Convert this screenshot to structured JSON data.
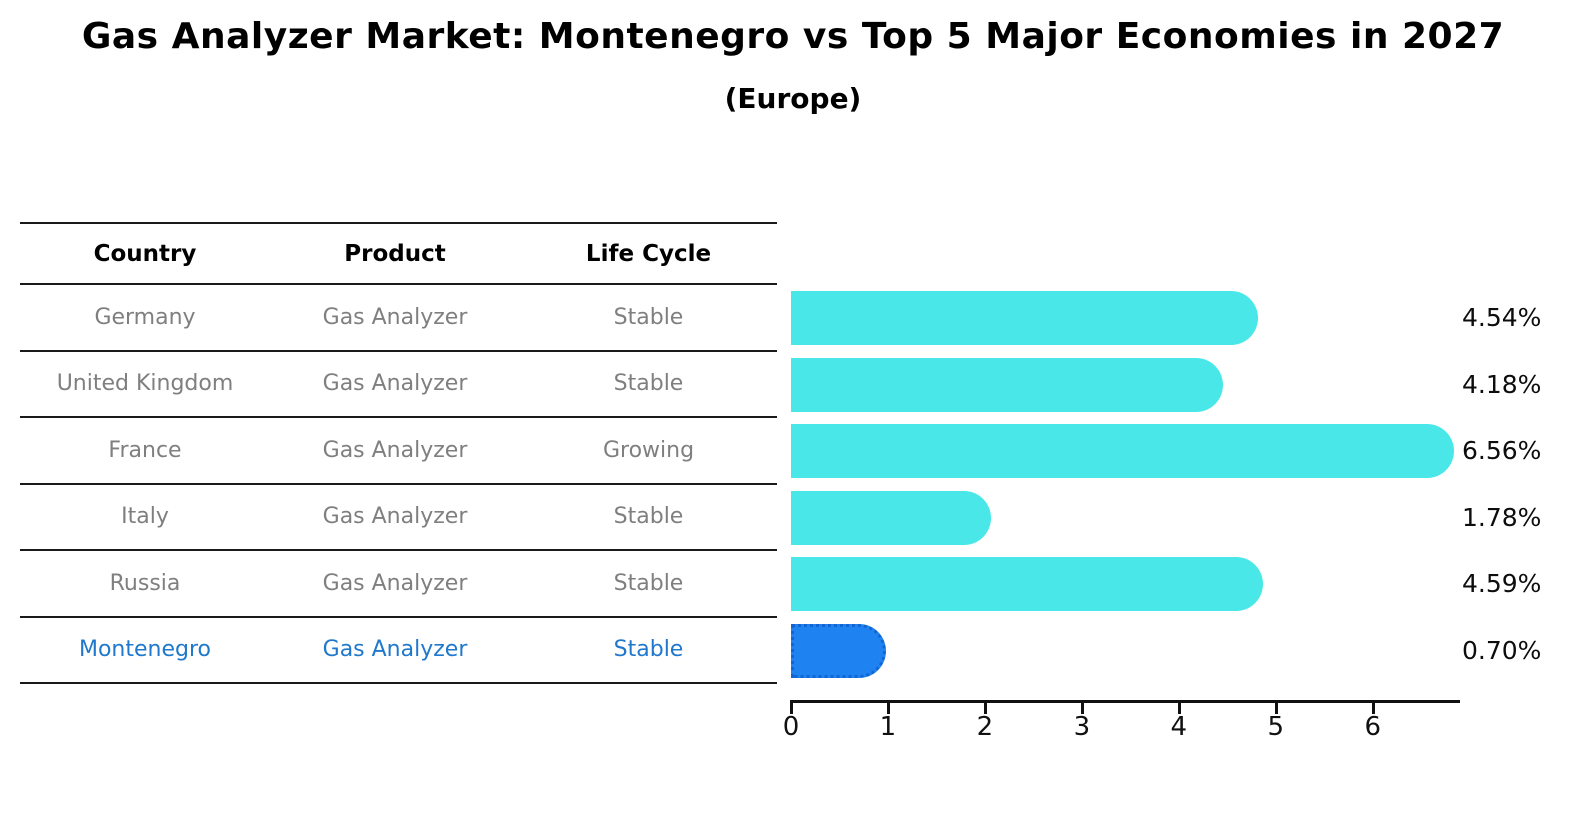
{
  "title": "Gas Analyzer Market: Montenegro vs Top 5 Major Economies in 2027",
  "subtitle": "(Europe)",
  "table": {
    "headers": [
      "Country",
      "Product",
      "Life Cycle"
    ],
    "rows": [
      {
        "country": "Germany",
        "product": "Gas Analyzer",
        "life_cycle": "Stable",
        "highlight": false
      },
      {
        "country": "United Kingdom",
        "product": "Gas Analyzer",
        "life_cycle": "Stable",
        "highlight": false
      },
      {
        "country": "France",
        "product": "Gas Analyzer",
        "life_cycle": "Growing",
        "highlight": false
      },
      {
        "country": "Italy",
        "product": "Gas Analyzer",
        "life_cycle": "Stable",
        "highlight": false
      },
      {
        "country": "Russia",
        "product": "Gas Analyzer",
        "life_cycle": "Stable",
        "highlight": false
      },
      {
        "country": "Montenegro",
        "product": "Gas Analyzer",
        "life_cycle": "Stable",
        "highlight": true
      }
    ]
  },
  "chart_data": {
    "type": "bar",
    "orientation": "horizontal",
    "title": "Gas Analyzer Market: Montenegro vs Top 5 Major Economies in 2027",
    "subtitle": "(Europe)",
    "categories": [
      "Germany",
      "United Kingdom",
      "France",
      "Italy",
      "Russia",
      "Montenegro"
    ],
    "values": [
      4.54,
      4.18,
      6.56,
      1.78,
      4.59,
      0.7
    ],
    "labels": [
      "4.54%",
      "4.18%",
      "6.56%",
      "1.78%",
      "4.59%",
      "0.70%"
    ],
    "x_ticks": [
      0,
      1,
      2,
      3,
      4,
      5,
      6
    ],
    "xlim": [
      0,
      6.9
    ],
    "xlabel": "",
    "ylabel": "",
    "grid": false,
    "legend": "none",
    "bar_color": "#49E7E8",
    "highlight_bar_color": "#1E82F0",
    "highlight_index": 5,
    "highlight_category": "Montenegro"
  },
  "colors": {
    "bar_cyan": "#49E7E8",
    "bar_blue": "#1E82F0",
    "bar_blue_border": "#1365D4",
    "highlight_text_blue": "#1F78CB",
    "row_text_gray": "#7f7f7f",
    "axis_black": "#111111",
    "background": "#ffffff"
  }
}
